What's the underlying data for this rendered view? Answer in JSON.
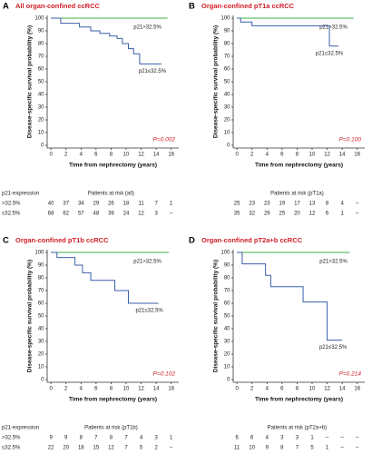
{
  "chart_data": [
    {
      "type": "line",
      "step": true,
      "panel": "A",
      "title": "All organ-confined ccRCC",
      "xlabel": "Time from nephrectomy (years)",
      "ylabel": "Disease-specific survival probability (%)",
      "xlim": [
        -0.5,
        17
      ],
      "xticks": [
        0,
        2,
        4,
        6,
        8,
        10,
        12,
        14,
        16
      ],
      "ylim": [
        0,
        100
      ],
      "yticks": [
        0,
        10,
        20,
        30,
        40,
        50,
        60,
        70,
        80,
        90,
        100
      ],
      "series": [
        {
          "name": "p21>32.5%",
          "color": "#3cb043",
          "x": [
            0,
            15.5
          ],
          "values": [
            100,
            100
          ]
        },
        {
          "name": "p21≤32.5%",
          "color": "#3a5fa8",
          "x": [
            0,
            1.3,
            1.3,
            3.8,
            3.8,
            5.3,
            5.3,
            6.5,
            6.5,
            7.8,
            7.8,
            8.8,
            8.8,
            9.5,
            9.5,
            10.3,
            10.3,
            11,
            11,
            11.8,
            11.8,
            14.7
          ],
          "values": [
            100,
            100,
            96,
            96,
            93,
            93,
            90,
            90,
            88,
            88,
            86,
            86,
            84,
            84,
            80,
            80,
            76,
            76,
            72,
            72,
            64,
            64
          ]
        }
      ],
      "annotation": "P=0.002",
      "risk_table": {
        "label": "p21-expression",
        "title": "Patients at risk (all)",
        "rows": [
          {
            "name": ">32.5%",
            "values": [
              40,
              37,
              34,
              29,
              26,
              18,
              11,
              7,
              1
            ]
          },
          {
            "name": "≤32.5%",
            "values": [
              68,
              62,
              57,
              48,
              39,
              24,
              12,
              3,
              "–"
            ]
          }
        ]
      }
    },
    {
      "type": "line",
      "step": true,
      "panel": "B",
      "title": "Organ-confined pT1a ccRCC",
      "xlabel": "Time from nephrectomy (years)",
      "ylabel": "Disease-specific survival probability (%)",
      "xlim": [
        -0.5,
        17
      ],
      "xticks": [
        0,
        2,
        4,
        6,
        8,
        10,
        12,
        14,
        16
      ],
      "ylim": [
        0,
        100
      ],
      "yticks": [
        0,
        10,
        20,
        30,
        40,
        50,
        60,
        70,
        80,
        90,
        100
      ],
      "series": [
        {
          "name": "p21>32.5%",
          "color": "#3cb043",
          "x": [
            0,
            15.5
          ],
          "values": [
            100,
            100
          ]
        },
        {
          "name": "p21≤32.5%",
          "color": "#3a5fa8",
          "x": [
            0,
            0.5,
            0.5,
            2,
            2,
            12.3,
            12.3,
            13.5
          ],
          "values": [
            100,
            100,
            97,
            97,
            94,
            94,
            78,
            78
          ]
        }
      ],
      "annotation": "P=0.100",
      "risk_table": {
        "title": "Patients at risk (pT1a)",
        "rows": [
          {
            "values": [
              25,
              23,
              23,
              19,
              17,
              13,
              8,
              4,
              "–"
            ]
          },
          {
            "values": [
              35,
              32,
              29,
              25,
              20,
              12,
              6,
              1,
              "–"
            ]
          }
        ]
      }
    },
    {
      "type": "line",
      "step": true,
      "panel": "C",
      "title": "Organ-confined pT1b ccRCC",
      "xlabel": "Time from nephrectomy (years)",
      "ylabel": "Disease-specific survival probability (%)",
      "xlim": [
        -0.5,
        17
      ],
      "xticks": [
        0,
        2,
        4,
        6,
        8,
        10,
        12,
        14,
        16
      ],
      "ylim": [
        0,
        100
      ],
      "yticks": [
        0,
        10,
        20,
        30,
        40,
        50,
        60,
        70,
        80,
        90,
        100
      ],
      "series": [
        {
          "name": "p21>32.5%",
          "color": "#3cb043",
          "x": [
            0,
            15.7
          ],
          "values": [
            100,
            100
          ]
        },
        {
          "name": "p21≤32.5%",
          "color": "#3a5fa8",
          "x": [
            0,
            0.8,
            0.8,
            3.2,
            3.2,
            4.2,
            4.2,
            5.3,
            5.3,
            8.5,
            8.5,
            10.3,
            10.3,
            14.3
          ],
          "values": [
            100,
            100,
            96,
            96,
            90,
            90,
            84,
            84,
            78,
            78,
            70,
            70,
            60,
            60
          ]
        }
      ],
      "annotation": "P=0.102",
      "risk_table": {
        "label": "p21-expression",
        "title": "Patients at risk (pT1b)",
        "rows": [
          {
            "name": ">32.5%",
            "values": [
              9,
              9,
              8,
              7,
              8,
              7,
              4,
              3,
              1
            ]
          },
          {
            "name": "≤32.5%",
            "values": [
              22,
              20,
              18,
              15,
              12,
              7,
              5,
              2,
              "–"
            ]
          }
        ]
      }
    },
    {
      "type": "line",
      "step": true,
      "panel": "D",
      "title": "Organ-confined pT2a+b ccRCC",
      "xlabel": "Time from nephrectomy (years)",
      "ylabel": "Disease-specific survival probability (%)",
      "xlim": [
        -0.5,
        17
      ],
      "xticks": [
        0,
        2,
        4,
        6,
        8,
        10,
        12,
        14,
        16
      ],
      "ylim": [
        0,
        100
      ],
      "yticks": [
        0,
        10,
        20,
        30,
        40,
        50,
        60,
        70,
        80,
        90,
        100
      ],
      "series": [
        {
          "name": "p21>32.5%",
          "color": "#3cb043",
          "x": [
            0,
            15
          ],
          "values": [
            100,
            100
          ]
        },
        {
          "name": "p21≤32.5%",
          "color": "#3a5fa8",
          "x": [
            0,
            0.7,
            0.7,
            3.8,
            3.8,
            4.5,
            4.5,
            8.8,
            8.8,
            12,
            12,
            14
          ],
          "values": [
            100,
            100,
            91,
            91,
            82,
            82,
            73,
            73,
            61,
            61,
            31,
            31
          ]
        }
      ],
      "annotation": "P=0.214",
      "risk_table": {
        "title": "Patients at risk (pT2a+b)",
        "rows": [
          {
            "values": [
              6,
              6,
              4,
              3,
              3,
              1,
              "–",
              "–",
              "–"
            ]
          },
          {
            "values": [
              11,
              10,
              9,
              8,
              7,
              5,
              1,
              "–",
              "–"
            ]
          }
        ]
      }
    }
  ]
}
